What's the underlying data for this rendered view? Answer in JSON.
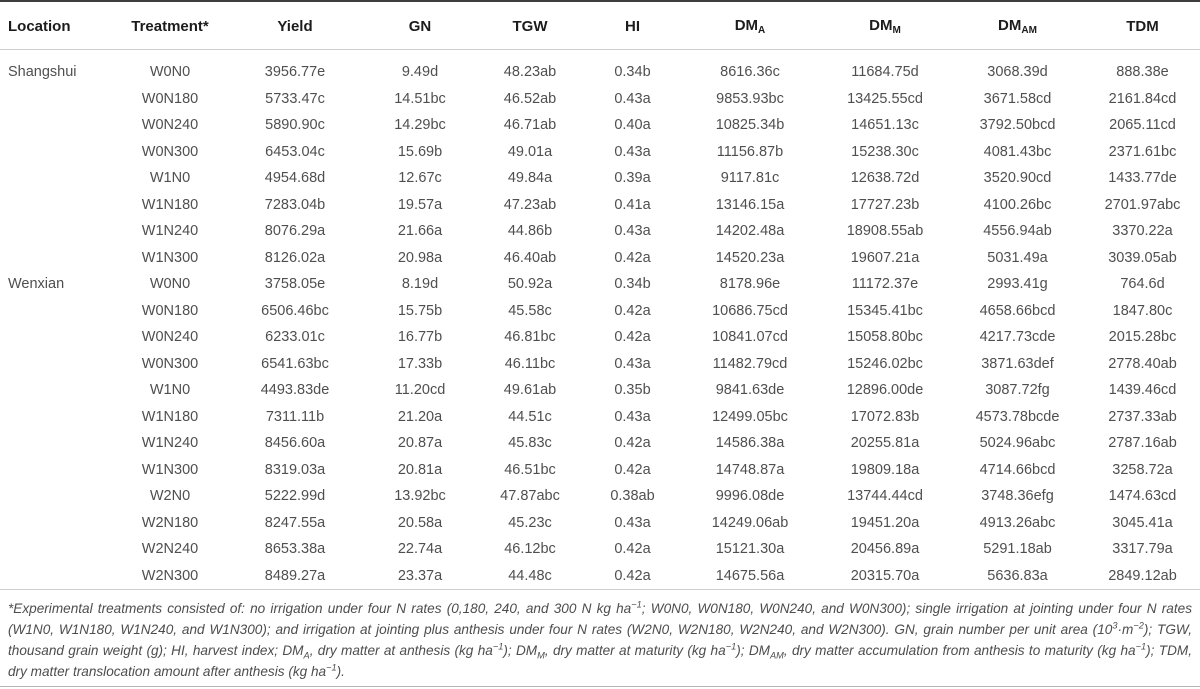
{
  "table": {
    "columns": [
      {
        "label": "Location",
        "align": "left"
      },
      {
        "label": "Treatment*",
        "align": "center"
      },
      {
        "label": "Yield",
        "align": "center"
      },
      {
        "label": "GN",
        "align": "center"
      },
      {
        "label": "TGW",
        "align": "center"
      },
      {
        "label": "HI",
        "align": "center"
      },
      {
        "label": "DM",
        "sub": "A",
        "align": "center"
      },
      {
        "label": "DM",
        "sub": "M",
        "align": "center"
      },
      {
        "label": "DM",
        "sub": "AM",
        "align": "center"
      },
      {
        "label": "TDM",
        "align": "center"
      }
    ],
    "locations": [
      {
        "name": "Shangshui",
        "rows": [
          {
            "treatment": "W0N0",
            "values": [
              "3956.77e",
              "9.49d",
              "48.23ab",
              "0.34b",
              "8616.36c",
              "11684.75d",
              "3068.39d",
              "888.38e"
            ]
          },
          {
            "treatment": "W0N180",
            "values": [
              "5733.47c",
              "14.51bc",
              "46.52ab",
              "0.43a",
              "9853.93bc",
              "13425.55cd",
              "3671.58cd",
              "2161.84cd"
            ]
          },
          {
            "treatment": "W0N240",
            "values": [
              "5890.90c",
              "14.29bc",
              "46.71ab",
              "0.40a",
              "10825.34b",
              "14651.13c",
              "3792.50bcd",
              "2065.11cd"
            ]
          },
          {
            "treatment": "W0N300",
            "values": [
              "6453.04c",
              "15.69b",
              "49.01a",
              "0.43a",
              "11156.87b",
              "15238.30c",
              "4081.43bc",
              "2371.61bc"
            ]
          },
          {
            "treatment": "W1N0",
            "values": [
              "4954.68d",
              "12.67c",
              "49.84a",
              "0.39a",
              "9117.81c",
              "12638.72d",
              "3520.90cd",
              "1433.77de"
            ]
          },
          {
            "treatment": "W1N180",
            "values": [
              "7283.04b",
              "19.57a",
              "47.23ab",
              "0.41a",
              "13146.15a",
              "17727.23b",
              "4100.26bc",
              "2701.97abc"
            ]
          },
          {
            "treatment": "W1N240",
            "values": [
              "8076.29a",
              "21.66a",
              "44.86b",
              "0.43a",
              "14202.48a",
              "18908.55ab",
              "4556.94ab",
              "3370.22a"
            ]
          },
          {
            "treatment": "W1N300",
            "values": [
              "8126.02a",
              "20.98a",
              "46.40ab",
              "0.42a",
              "14520.23a",
              "19607.21a",
              "5031.49a",
              "3039.05ab"
            ]
          }
        ]
      },
      {
        "name": "Wenxian",
        "rows": [
          {
            "treatment": "W0N0",
            "values": [
              "3758.05e",
              "8.19d",
              "50.92a",
              "0.34b",
              "8178.96e",
              "11172.37e",
              "2993.41g",
              "764.6d"
            ]
          },
          {
            "treatment": "W0N180",
            "values": [
              "6506.46bc",
              "15.75b",
              "45.58c",
              "0.42a",
              "10686.75cd",
              "15345.41bc",
              "4658.66bcd",
              "1847.80c"
            ]
          },
          {
            "treatment": "W0N240",
            "values": [
              "6233.01c",
              "16.77b",
              "46.81bc",
              "0.42a",
              "10841.07cd",
              "15058.80bc",
              "4217.73cde",
              "2015.28bc"
            ]
          },
          {
            "treatment": "W0N300",
            "values": [
              "6541.63bc",
              "17.33b",
              "46.11bc",
              "0.43a",
              "11482.79cd",
              "15246.02bc",
              "3871.63def",
              "2778.40ab"
            ]
          },
          {
            "treatment": "W1N0",
            "values": [
              "4493.83de",
              "11.20cd",
              "49.61ab",
              "0.35b",
              "9841.63de",
              "12896.00de",
              "3087.72fg",
              "1439.46cd"
            ]
          },
          {
            "treatment": "W1N180",
            "values": [
              "7311.11b",
              "21.20a",
              "44.51c",
              "0.43a",
              "12499.05bc",
              "17072.83b",
              "4573.78bcde",
              "2737.33ab"
            ]
          },
          {
            "treatment": "W1N240",
            "values": [
              "8456.60a",
              "20.87a",
              "45.83c",
              "0.42a",
              "14586.38a",
              "20255.81a",
              "5024.96abc",
              "2787.16ab"
            ]
          },
          {
            "treatment": "W1N300",
            "values": [
              "8319.03a",
              "20.81a",
              "46.51bc",
              "0.42a",
              "14748.87a",
              "19809.18a",
              "4714.66bcd",
              "3258.72a"
            ]
          },
          {
            "treatment": "W2N0",
            "values": [
              "5222.99d",
              "13.92bc",
              "47.87abc",
              "0.38ab",
              "9996.08de",
              "13744.44cd",
              "3748.36efg",
              "1474.63cd"
            ]
          },
          {
            "treatment": "W2N180",
            "values": [
              "8247.55a",
              "20.58a",
              "45.23c",
              "0.43a",
              "14249.06ab",
              "19451.20a",
              "4913.26abc",
              "3045.41a"
            ]
          },
          {
            "treatment": "W2N240",
            "values": [
              "8653.38a",
              "22.74a",
              "46.12bc",
              "0.42a",
              "15121.30a",
              "20456.89a",
              "5291.18ab",
              "3317.79a"
            ]
          },
          {
            "treatment": "W2N300",
            "values": [
              "8489.27a",
              "23.37a",
              "44.48c",
              "0.42a",
              "14675.56a",
              "20315.70a",
              "5636.83a",
              "2849.12ab"
            ]
          }
        ]
      }
    ]
  },
  "footnote": {
    "segments": [
      {
        "t": "text",
        "v": "*Experimental treatments consisted of: no irrigation under four N rates (0,180, 240, and 300 N kg ha"
      },
      {
        "t": "sup",
        "v": "−1"
      },
      {
        "t": "text",
        "v": "; W0N0, W0N180, W0N240, and W0N300); single irrigation at jointing under four N rates (W1N0, W1N180, W1N240, and W1N300); and irrigation at jointing plus anthesis under four N rates (W2N0, W2N180, W2N240, and W2N300). GN, grain number per unit area (10"
      },
      {
        "t": "sup",
        "v": "3"
      },
      {
        "t": "text",
        "v": "·m"
      },
      {
        "t": "sup",
        "v": "−2"
      },
      {
        "t": "text",
        "v": "); TGW, thousand grain weight (g); HI, harvest index; DM"
      },
      {
        "t": "sub",
        "v": "A"
      },
      {
        "t": "text",
        "v": ", dry matter at anthesis (kg ha"
      },
      {
        "t": "sup",
        "v": "−1"
      },
      {
        "t": "text",
        "v": "); DM"
      },
      {
        "t": "sub",
        "v": "M"
      },
      {
        "t": "text",
        "v": ", dry matter at maturity (kg ha"
      },
      {
        "t": "sup",
        "v": "−1"
      },
      {
        "t": "text",
        "v": "); DM"
      },
      {
        "t": "sub",
        "v": "AM"
      },
      {
        "t": "text",
        "v": ", dry matter accumulation from anthesis to maturity (kg ha"
      },
      {
        "t": "sup",
        "v": "−1"
      },
      {
        "t": "text",
        "v": "); TDM, dry matter translocation amount after anthesis (kg ha"
      },
      {
        "t": "sup",
        "v": "−1"
      },
      {
        "t": "text",
        "v": ")."
      }
    ]
  }
}
